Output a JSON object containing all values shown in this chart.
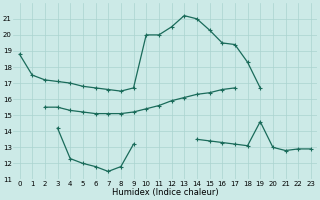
{
  "x": [
    0,
    1,
    2,
    3,
    4,
    5,
    6,
    7,
    8,
    9,
    10,
    11,
    12,
    13,
    14,
    15,
    16,
    17,
    18,
    19,
    20,
    21,
    22,
    23
  ],
  "y1": [
    18.8,
    17.5,
    17.2,
    17.1,
    17.0,
    16.8,
    16.7,
    16.6,
    16.5,
    16.7,
    20.0,
    20.0,
    20.5,
    21.2,
    21.0,
    20.3,
    19.5,
    19.4,
    18.3,
    16.7,
    null,
    null,
    null,
    null
  ],
  "y2": [
    null,
    null,
    15.5,
    15.5,
    15.3,
    15.2,
    15.1,
    15.1,
    15.1,
    15.2,
    15.4,
    15.6,
    15.9,
    16.1,
    16.3,
    16.4,
    16.6,
    16.7,
    null,
    null,
    null,
    null,
    null,
    null
  ],
  "y3": [
    null,
    null,
    null,
    14.2,
    12.3,
    12.0,
    11.8,
    11.5,
    11.8,
    13.2,
    null,
    null,
    null,
    null,
    null,
    null,
    null,
    null,
    null,
    null,
    null,
    null,
    null,
    null
  ],
  "y4": [
    null,
    null,
    null,
    null,
    null,
    null,
    null,
    null,
    null,
    null,
    null,
    null,
    null,
    null,
    13.5,
    13.4,
    13.3,
    13.2,
    13.1,
    14.6,
    13.0,
    12.8,
    12.9,
    12.9
  ],
  "bg_color": "#cceae7",
  "grid_color": "#aad4d0",
  "line_color": "#1a6b5a",
  "xlabel": "Humidex (Indice chaleur)",
  "ylim": [
    11,
    22
  ],
  "xlim": [
    -0.5,
    23.5
  ],
  "yticks": [
    11,
    12,
    13,
    14,
    15,
    16,
    17,
    18,
    19,
    20,
    21
  ],
  "xticks": [
    0,
    1,
    2,
    3,
    4,
    5,
    6,
    7,
    8,
    9,
    10,
    11,
    12,
    13,
    14,
    15,
    16,
    17,
    18,
    19,
    20,
    21,
    22,
    23
  ],
  "xlabel_fontsize": 6.0,
  "tick_fontsize": 5.0,
  "lw": 0.9,
  "ms": 2.5
}
